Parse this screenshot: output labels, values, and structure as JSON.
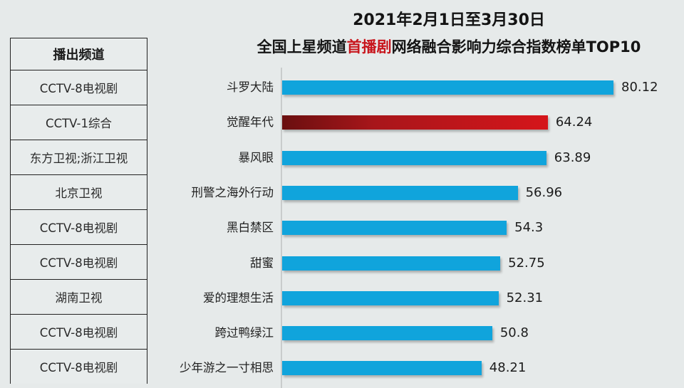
{
  "title": {
    "line1": "2021年2月1日至3月30日",
    "line2_prefix": "全国上星频道",
    "line2_highlight": "首播剧",
    "line2_suffix": "网络融合影响力综合指数榜单TOP10"
  },
  "colors": {
    "bar": "#10a4dc",
    "highlight_bar_start": "#6a0f10",
    "highlight_bar_end": "#d5151a",
    "title_highlight": "#c8161d",
    "background": "#e6eaea"
  },
  "table": {
    "header": "播出频道",
    "rows": [
      "CCTV-8电视剧",
      "CCTV-1综合",
      "东方卫视;浙江卫视",
      "北京卫视",
      "CCTV-8电视剧",
      "CCTV-8电视剧",
      "湖南卫视",
      "CCTV-8电视剧",
      "CCTV-8电视剧"
    ]
  },
  "chart_data": {
    "type": "bar",
    "orientation": "horizontal",
    "title": "2021年2月1日至3月30日 全国上星频道首播剧网络融合影响力综合指数榜单TOP10",
    "xlabel": "",
    "ylabel": "",
    "grid": false,
    "legend": null,
    "categories": [
      "斗罗大陆",
      "觉醒年代",
      "暴风眼",
      "刑警之海外行动",
      "黑白禁区",
      "甜蜜",
      "爱的理想生活",
      "跨过鸭绿江",
      "少年游之一寸相思"
    ],
    "values": [
      80.12,
      64.24,
      63.89,
      56.96,
      54.3,
      52.75,
      52.31,
      50.8,
      48.21
    ],
    "value_labels": [
      "80.12",
      "64.24",
      "63.89",
      "56.96",
      "54.3",
      "52.75",
      "52.31",
      "50.8",
      "48.21"
    ],
    "highlighted_index": 1
  }
}
